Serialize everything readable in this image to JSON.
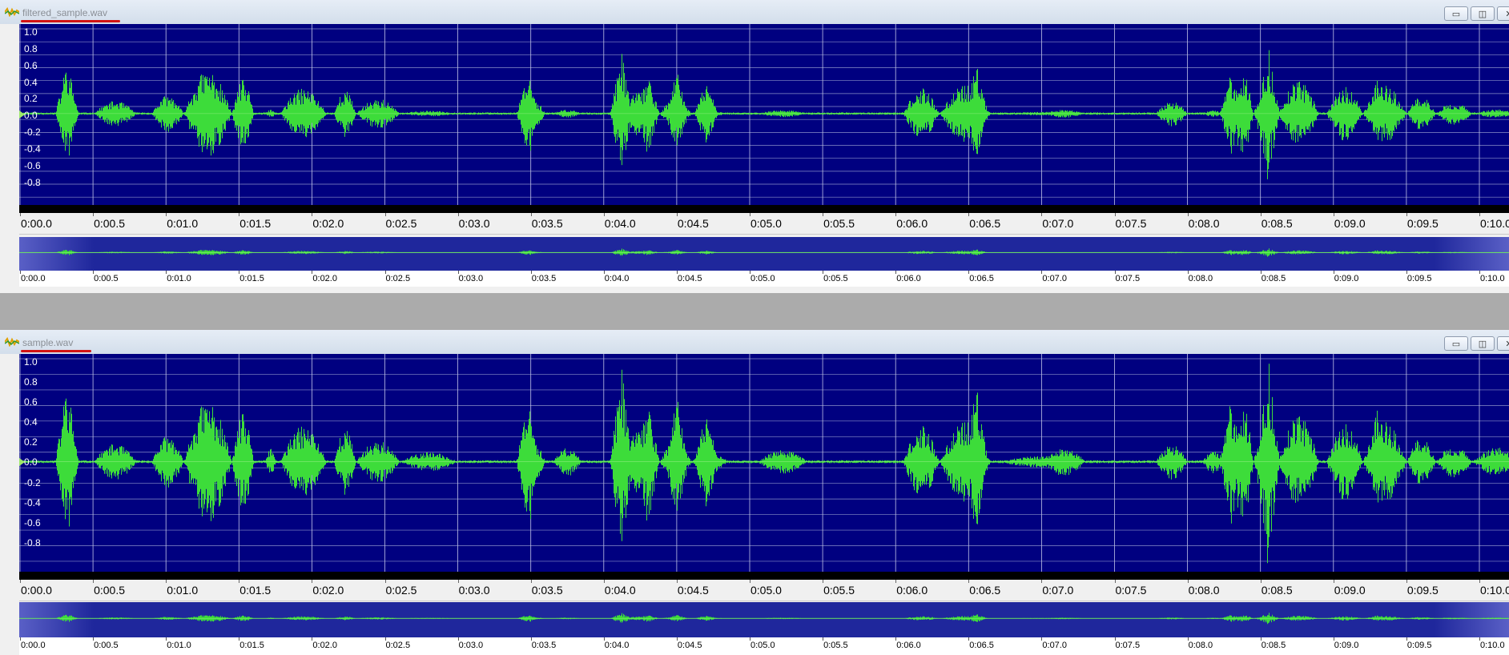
{
  "windows": [
    {
      "key": "filtered",
      "title": "filtered_sample.wav",
      "buttons": {
        "minimize": "▭",
        "maximize": "◫",
        "close": "✕"
      }
    },
    {
      "key": "original",
      "title": "sample.wav",
      "buttons": {
        "minimize": "▭",
        "maximize": "◫",
        "close": "✕"
      }
    }
  ],
  "amplitude_labels": [
    "1.0",
    "0.8",
    "0.6",
    "0.4",
    "0.2",
    "0.0",
    "-0.2",
    "-0.4",
    "-0.6",
    "-0.8"
  ],
  "time_labels": [
    "0:00.0",
    "0:00.5",
    "0:01.0",
    "0:01.5",
    "0:02.0",
    "0:02.5",
    "0:03.0",
    "0:03.5",
    "0:04.0",
    "0:04.5",
    "0:05.0",
    "0:05.5",
    "0:06.0",
    "0:06.5",
    "0:07.0",
    "0:07.5",
    "0:08.0",
    "0:08.5",
    "0:09.0",
    "0:09.5",
    "0:10.0"
  ],
  "colors": {
    "waveform": "#3ddc3a",
    "waveform_light": "#9cf08a",
    "background": "#000080",
    "grid": "#8a8fc8",
    "annotation": "#d21414"
  },
  "icons": {
    "app": "waveform-app-icon",
    "playhead": "play-marker-icon"
  }
}
